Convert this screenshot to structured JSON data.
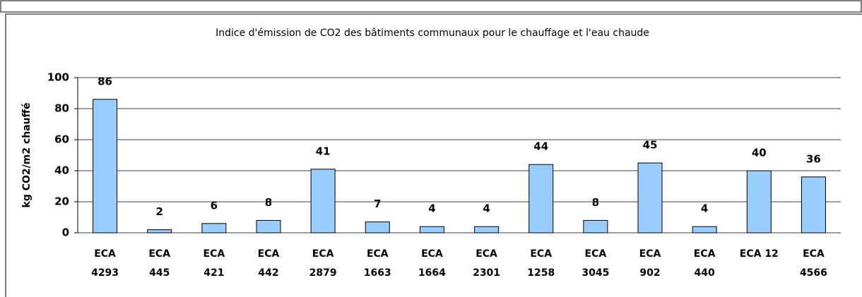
{
  "chart_data": {
    "type": "bar",
    "title": "Indice d'émission de CO2 des bâtiments communaux pour le chauffage et l'eau chaude",
    "y_label": "kg CO2/m2 chauffé",
    "categories": [
      "ECA 4293",
      "ECA 445",
      "ECA 421",
      "ECA 442",
      "ECA 2879",
      "ECA 1663",
      "ECA 1664",
      "ECA 2301",
      "ECA 1258",
      "ECA 3045",
      "ECA 902",
      "ECA 440",
      "ECA 12",
      "ECA 4566"
    ],
    "values": [
      86,
      2,
      6,
      8,
      41,
      7,
      4,
      4,
      44,
      8,
      45,
      4,
      40,
      36
    ],
    "color": "#99ccff",
    "ylim": [
      0,
      100
    ],
    "yticks": [
      0,
      20,
      40,
      60,
      80,
      100
    ],
    "grid": true
  }
}
